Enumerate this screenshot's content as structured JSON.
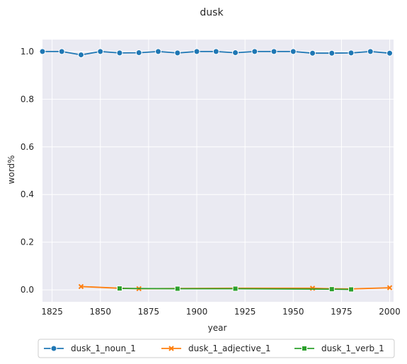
{
  "chart_data": {
    "type": "line",
    "title": "dusk",
    "xlabel": "year",
    "ylabel": "word%",
    "xlim": [
      1820,
      2002
    ],
    "ylim": [
      -0.05,
      1.05
    ],
    "xticks": [
      1825,
      1850,
      1875,
      1900,
      1925,
      1950,
      1975,
      2000
    ],
    "yticks": [
      0.0,
      0.2,
      0.4,
      0.6,
      0.8,
      1.0
    ],
    "grid": true,
    "background": "#eaeaf2",
    "legend_position": "bottom",
    "series": [
      {
        "name": "dusk_1_noun_1",
        "color": "#1f77b4",
        "marker": "circle",
        "x": [
          1820,
          1830,
          1840,
          1850,
          1860,
          1870,
          1880,
          1890,
          1900,
          1910,
          1920,
          1930,
          1940,
          1950,
          1960,
          1970,
          1980,
          1990,
          2000
        ],
        "y": [
          1.0,
          1.0,
          0.986,
          1.0,
          0.994,
          0.995,
          1.0,
          0.994,
          1.0,
          1.0,
          0.995,
          1.0,
          1.0,
          1.0,
          0.993,
          0.993,
          0.994,
          1.0,
          0.993
        ]
      },
      {
        "name": "dusk_1_adjective_1",
        "color": "#ff7f0e",
        "marker": "x",
        "x": [
          1840,
          1860,
          1870,
          1890,
          1920,
          1960,
          1970,
          1980,
          2000
        ],
        "y": [
          0.014,
          0.007,
          0.005,
          0.006,
          0.007,
          0.007,
          0.005,
          0.004,
          0.009
        ]
      },
      {
        "name": "dusk_1_verb_1",
        "color": "#2ca02c",
        "marker": "square",
        "x": [
          1860,
          1890,
          1920,
          1970,
          1980
        ],
        "y": [
          0.006,
          0.005,
          0.005,
          0.003,
          0.002
        ]
      }
    ]
  }
}
